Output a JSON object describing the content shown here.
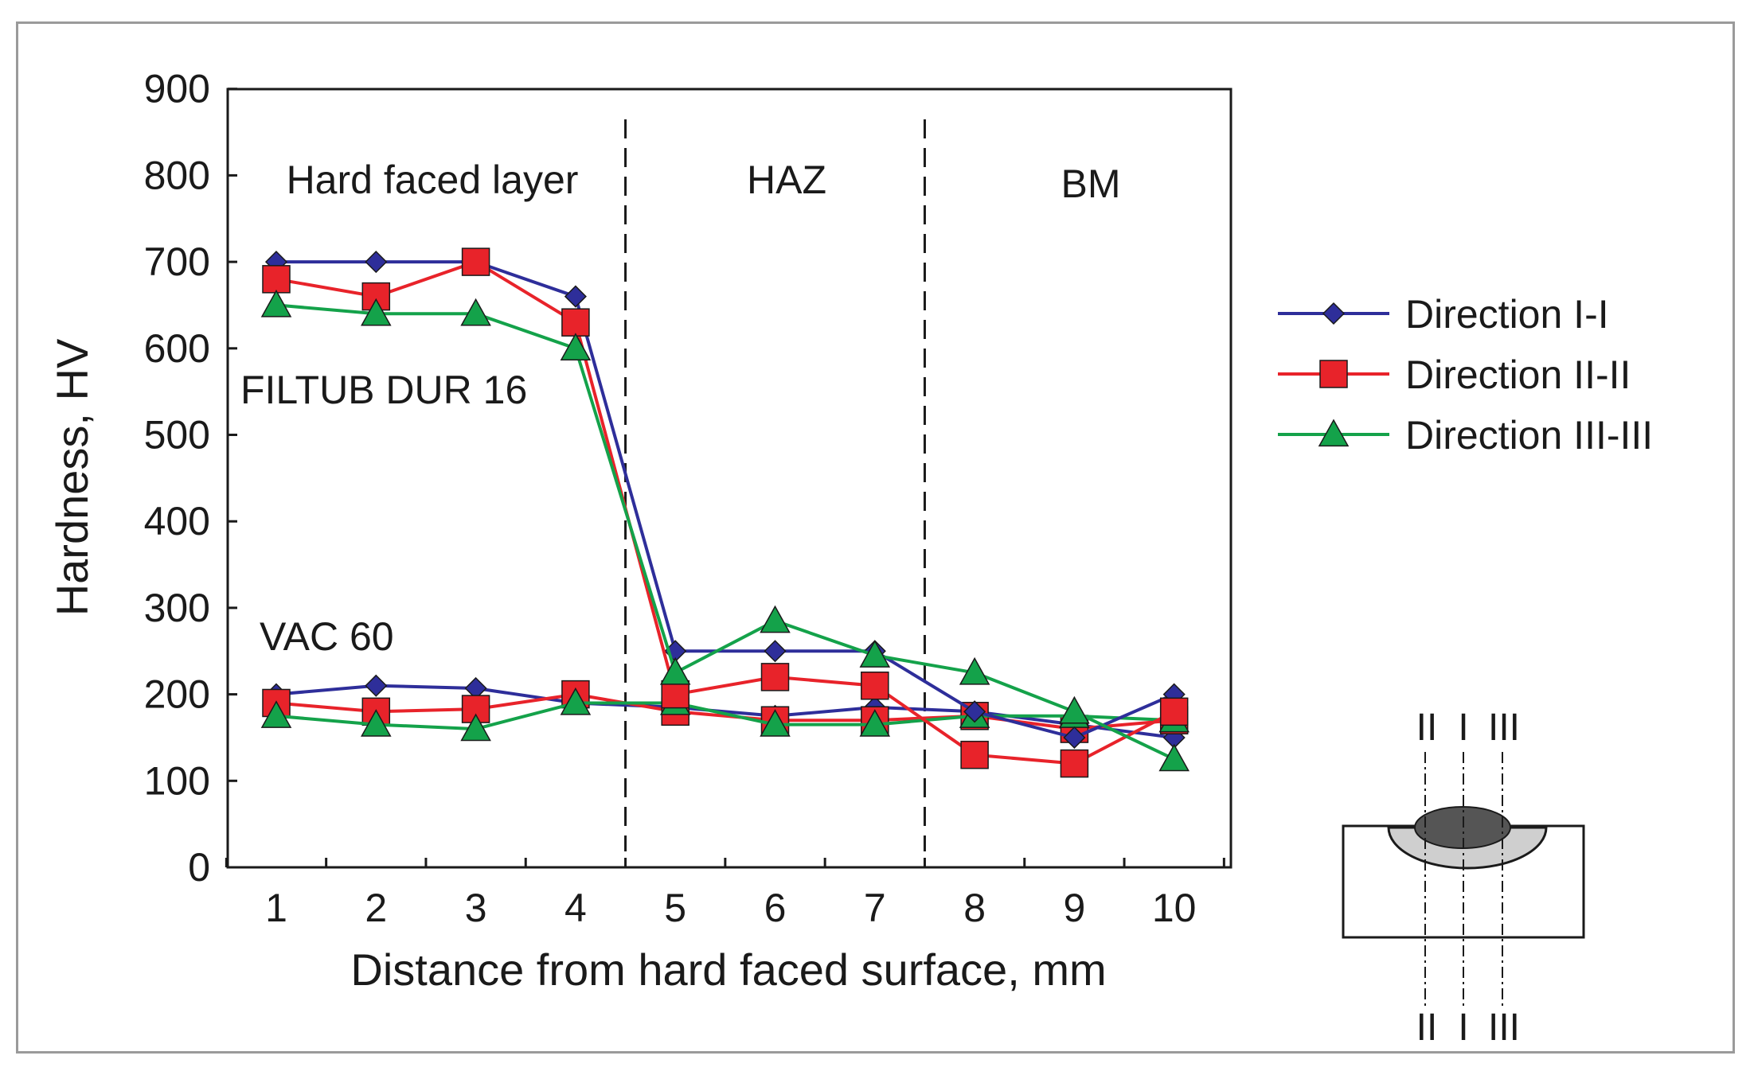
{
  "chart_data": {
    "type": "line",
    "x": [
      1,
      2,
      3,
      4,
      5,
      6,
      7,
      8,
      9,
      10
    ],
    "xlabel": "Distance from hard faced surface, mm",
    "ylabel": "Hardness, HV",
    "ylim": [
      0,
      900
    ],
    "yticks": [
      0,
      100,
      200,
      300,
      400,
      500,
      600,
      700,
      800,
      900
    ],
    "grid": false,
    "legend_position": "right",
    "region_labels": [
      "Hard faced layer",
      "HAZ",
      "BM"
    ],
    "region_boundaries": [
      4.5,
      7.5
    ],
    "group_labels": [
      "FILTUB DUR 16",
      "VAC 60"
    ],
    "series": [
      {
        "name": "Direction I-I",
        "group": "FILTUB DUR 16",
        "color": "#2e2e9a",
        "marker": "diamond",
        "values": [
          700,
          700,
          700,
          660,
          250,
          250,
          250,
          180,
          150,
          200
        ]
      },
      {
        "name": "Direction II-II",
        "group": "FILTUB DUR 16",
        "color": "#e8232a",
        "marker": "square",
        "values": [
          680,
          660,
          700,
          630,
          200,
          220,
          210,
          130,
          120,
          180
        ]
      },
      {
        "name": "Direction III-III",
        "group": "FILTUB DUR 16",
        "color": "#14a24a",
        "marker": "triangle",
        "values": [
          650,
          640,
          640,
          600,
          225,
          285,
          245,
          225,
          180,
          125
        ]
      },
      {
        "group": "VAC 60",
        "color": "#2e2e9a",
        "marker": "diamond",
        "values": [
          200,
          210,
          207,
          190,
          185,
          175,
          185,
          180,
          165,
          150
        ]
      },
      {
        "group": "VAC 60",
        "color": "#e8232a",
        "marker": "square",
        "values": [
          190,
          180,
          183,
          200,
          180,
          170,
          170,
          175,
          160,
          170
        ]
      },
      {
        "group": "VAC 60",
        "color": "#14a24a",
        "marker": "triangle",
        "values": [
          175,
          165,
          160,
          190,
          190,
          165,
          165,
          175,
          175,
          170
        ]
      }
    ],
    "legend": [
      "Direction I-I",
      "Direction II-II",
      "Direction III-III"
    ]
  },
  "diagram": {
    "top_labels": [
      "II",
      "I",
      "III"
    ],
    "bottom_labels": [
      "II",
      "I",
      "III"
    ]
  }
}
